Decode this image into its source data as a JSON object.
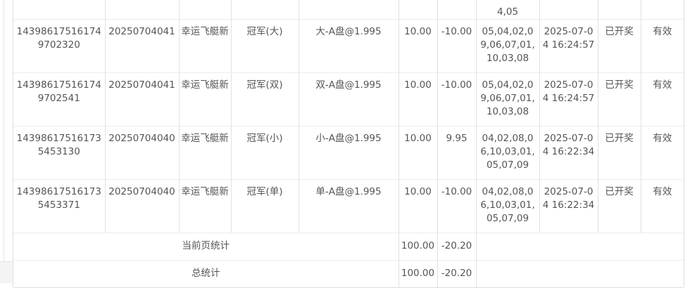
{
  "partial_row": {
    "draw_numbers_tail": "4,05"
  },
  "rows": [
    {
      "id": "143986175161749702320",
      "issue": "20250704041",
      "game": "幸运飞艇新",
      "play": "冠军(大)",
      "bet": "大-A盘@1.995",
      "amount": "10.00",
      "profit": "-10.00",
      "numbers": "05,04,02,09,06,07,01,10,03,08",
      "time": "2025-07-04 16:24:57",
      "status": "已开奖",
      "valid": "有效"
    },
    {
      "id": "143986175161749702541",
      "issue": "20250704041",
      "game": "幸运飞艇新",
      "play": "冠军(双)",
      "bet": "双-A盘@1.995",
      "amount": "10.00",
      "profit": "-10.00",
      "numbers": "05,04,02,09,06,07,01,10,03,08",
      "time": "2025-07-04 16:24:57",
      "status": "已开奖",
      "valid": "有效"
    },
    {
      "id": "143986175161735453130",
      "issue": "20250704040",
      "game": "幸运飞艇新",
      "play": "冠军(小)",
      "bet": "小-A盘@1.995",
      "amount": "10.00",
      "profit": "9.95",
      "numbers": "04,02,08,06,10,03,01,05,07,09",
      "time": "2025-07-04 16:22:34",
      "status": "已开奖",
      "valid": "有效"
    },
    {
      "id": "143986175161735453371",
      "issue": "20250704040",
      "game": "幸运飞艇新",
      "play": "冠军(单)",
      "bet": "单-A盘@1.995",
      "amount": "10.00",
      "profit": "-10.00",
      "numbers": "04,02,08,06,10,03,01,05,07,09",
      "time": "2025-07-04 16:22:34",
      "status": "已开奖",
      "valid": "有效"
    }
  ],
  "summary": [
    {
      "label": "当前页统计",
      "amount": "100.00",
      "profit": "-20.20"
    },
    {
      "label": "总统计",
      "amount": "100.00",
      "profit": "-20.20"
    }
  ]
}
